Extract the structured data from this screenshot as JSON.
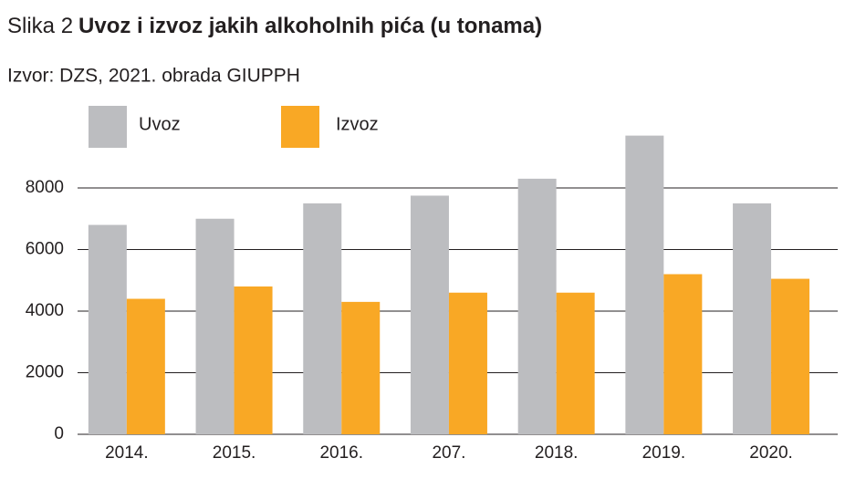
{
  "chart_data": {
    "type": "bar",
    "figure_label": "Slika 2",
    "title": "Uvoz i izvoz jakih alkoholnih pića (u tonama)",
    "subtitle": "Izvor: DZS, 2021. obrada GIUPPH",
    "categories": [
      "2014.",
      "2015.",
      "2016.",
      "207.",
      "2018.",
      "2019.",
      "2020."
    ],
    "series": [
      {
        "name": "Uvoz",
        "color": "#bcbdc0",
        "values": [
          6800,
          7000,
          7500,
          7750,
          8300,
          9700,
          7500
        ]
      },
      {
        "name": "Izvoz",
        "color": "#f9a825",
        "values": [
          4400,
          4800,
          4300,
          4600,
          4600,
          5200,
          5050
        ]
      }
    ],
    "ylim": [
      0,
      10000
    ],
    "yticks": [
      0,
      2000,
      4000,
      6000,
      8000
    ],
    "grid": true,
    "legend": "top-left"
  }
}
